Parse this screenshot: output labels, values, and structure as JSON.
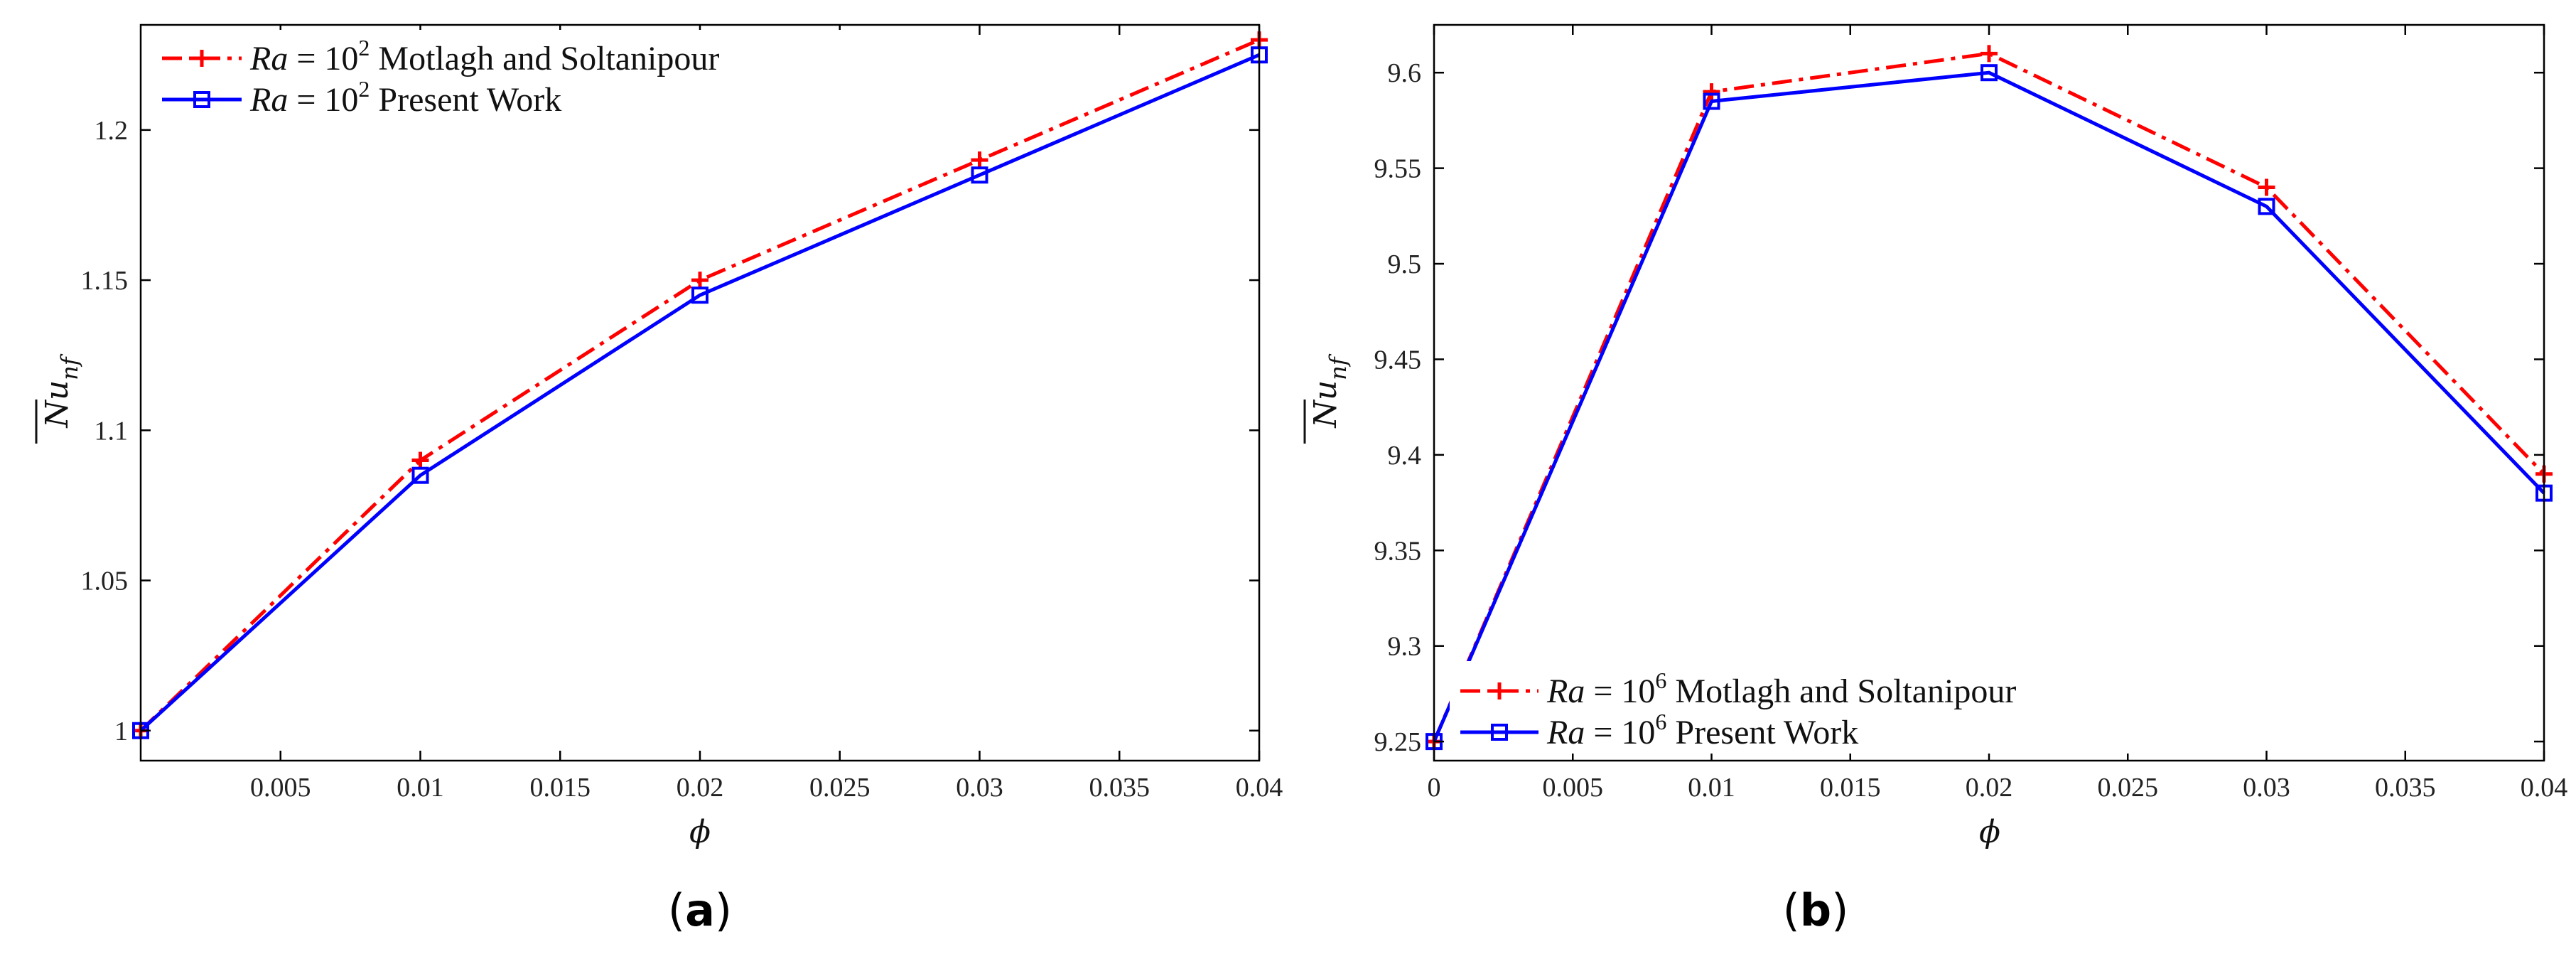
{
  "charts": [
    {
      "id": "a",
      "caption_open": "(",
      "caption_letter": "a",
      "caption_close": ")",
      "xlabel": "ϕ",
      "ylabel_base": "Nu",
      "ylabel_sub": "nf",
      "legend": [
        {
          "prefix": "Ra",
          "mid": " = 10",
          "exp": "2",
          "text": " Motlagh and Soltanipour",
          "series": "ref"
        },
        {
          "prefix": "Ra",
          "mid": " = 10",
          "exp": "2",
          "text": " Present Work",
          "series": "pw"
        }
      ],
      "xticks": [
        "0.005",
        "0.01",
        "0.015",
        "0.02",
        "0.025",
        "0.03",
        "0.035",
        "0.04"
      ],
      "yticks": [
        "1",
        "1.05",
        "1.1",
        "1.15",
        "1.2"
      ]
    },
    {
      "id": "b",
      "caption_open": "(",
      "caption_letter": "b",
      "caption_close": ")",
      "xlabel": "ϕ",
      "ylabel_base": "Nu",
      "ylabel_sub": "nf",
      "legend": [
        {
          "prefix": "Ra",
          "mid": " = 10",
          "exp": "6",
          "text": " Motlagh and Soltanipour",
          "series": "ref"
        },
        {
          "prefix": "Ra",
          "mid": " = 10",
          "exp": "6",
          "text": " Present Work",
          "series": "pw"
        }
      ],
      "xticks": [
        "0",
        "0.005",
        "0.01",
        "0.015",
        "0.02",
        "0.025",
        "0.03",
        "0.035",
        "0.04"
      ],
      "yticks": [
        "9.25",
        "9.3",
        "9.35",
        "9.4",
        "9.45",
        "9.5",
        "9.55",
        "9.6"
      ]
    }
  ],
  "chart_data": [
    {
      "type": "line",
      "title": "(a)",
      "xlabel": "ϕ",
      "ylabel": "Nu_nf (overlined)",
      "xlim": [
        0,
        0.04
      ],
      "ylim": [
        0.99,
        1.235
      ],
      "x": [
        0,
        0.01,
        0.02,
        0.03,
        0.04
      ],
      "series": [
        {
          "name": "Ra = 10^2 Motlagh and Soltanipour",
          "color": "#ff0000",
          "style": "dash-dot",
          "marker": "plus",
          "values": [
            1.0,
            1.09,
            1.15,
            1.19,
            1.23
          ]
        },
        {
          "name": "Ra = 10^2 Present Work",
          "color": "#0000ff",
          "style": "solid",
          "marker": "square",
          "values": [
            1.0,
            1.085,
            1.145,
            1.185,
            1.225
          ]
        }
      ],
      "xticks": [
        0.005,
        0.01,
        0.015,
        0.02,
        0.025,
        0.03,
        0.035,
        0.04
      ],
      "yticks": [
        1,
        1.05,
        1.1,
        1.15,
        1.2
      ],
      "legend": "top-left",
      "grid": false
    },
    {
      "type": "line",
      "title": "(b)",
      "xlabel": "ϕ",
      "ylabel": "Nu_nf (overlined)",
      "xlim": [
        0,
        0.04
      ],
      "ylim": [
        9.24,
        9.625
      ],
      "x": [
        0,
        0.01,
        0.02,
        0.03,
        0.04
      ],
      "series": [
        {
          "name": "Ra = 10^6 Motlagh and Soltanipour",
          "color": "#ff0000",
          "style": "dash-dot",
          "marker": "plus",
          "values": [
            9.25,
            9.59,
            9.61,
            9.54,
            9.39
          ]
        },
        {
          "name": "Ra = 10^6 Present Work",
          "color": "#0000ff",
          "style": "solid",
          "marker": "square",
          "values": [
            9.25,
            9.585,
            9.6,
            9.53,
            9.38
          ]
        }
      ],
      "xticks": [
        0,
        0.005,
        0.01,
        0.015,
        0.02,
        0.025,
        0.03,
        0.035,
        0.04
      ],
      "yticks": [
        9.25,
        9.3,
        9.35,
        9.4,
        9.45,
        9.5,
        9.55,
        9.6
      ],
      "legend": "bottom-left",
      "grid": false
    }
  ]
}
